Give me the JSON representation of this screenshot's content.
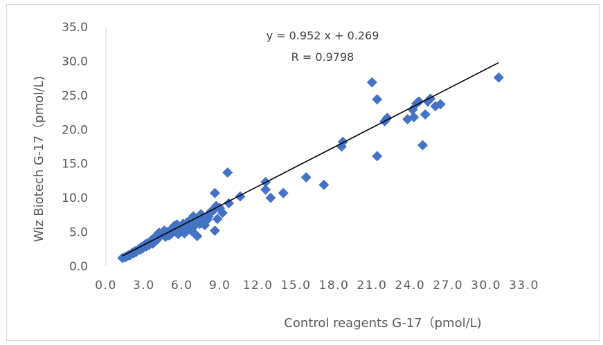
{
  "chart_data": {
    "type": "scatter",
    "title": "",
    "xlabel": "Control reagents  G-17（pmol/L)",
    "ylabel": "Wiz Biotech G-17（pmol/L)",
    "xlim": [
      0,
      33
    ],
    "ylim": [
      0,
      35
    ],
    "x_ticks": [
      "0.0",
      "3.0",
      "6.0",
      "9.0",
      "12.0",
      "15.0",
      "18.0",
      "21.0",
      "24.0",
      "27.0",
      "30.0",
      "33.0"
    ],
    "y_ticks": [
      "0.0",
      "5.0",
      "10.0",
      "15.0",
      "20.0",
      "25.0",
      "30.0",
      "35.0"
    ],
    "grid": false,
    "legend": "none",
    "marker_color": "#4472C4",
    "trendline": {
      "slope": 0.952,
      "intercept": 0.269,
      "x_range": [
        1.3,
        31.0
      ],
      "color": "#000000"
    },
    "annotations": [
      "y = 0.952 x + 0.269",
      "R = 0.9798"
    ],
    "points": [
      [
        1.3,
        1.2
      ],
      [
        1.5,
        1.3
      ],
      [
        1.6,
        1.4
      ],
      [
        1.7,
        1.5
      ],
      [
        1.8,
        1.6
      ],
      [
        1.9,
        1.6
      ],
      [
        2.0,
        1.8
      ],
      [
        2.1,
        2.0
      ],
      [
        2.2,
        1.9
      ],
      [
        2.3,
        2.2
      ],
      [
        2.4,
        2.1
      ],
      [
        2.5,
        2.3
      ],
      [
        2.6,
        2.5
      ],
      [
        2.7,
        2.4
      ],
      [
        2.8,
        2.8
      ],
      [
        2.9,
        2.6
      ],
      [
        3.0,
        3.0
      ],
      [
        3.1,
        3.2
      ],
      [
        3.2,
        2.9
      ],
      [
        3.3,
        3.4
      ],
      [
        3.4,
        3.1
      ],
      [
        3.5,
        3.6
      ],
      [
        3.6,
        3.8
      ],
      [
        3.7,
        3.3
      ],
      [
        3.8,
        4.0
      ],
      [
        3.9,
        4.3
      ],
      [
        4.0,
        3.8
      ],
      [
        4.1,
        4.2
      ],
      [
        4.2,
        4.9
      ],
      [
        4.3,
        4.4
      ],
      [
        4.5,
        4.7
      ],
      [
        4.6,
        5.2
      ],
      [
        4.7,
        4.3
      ],
      [
        4.8,
        5.0
      ],
      [
        4.9,
        4.6
      ],
      [
        5.0,
        4.5
      ],
      [
        5.1,
        5.3
      ],
      [
        5.2,
        4.8
      ],
      [
        5.3,
        5.5
      ],
      [
        5.4,
        5.9
      ],
      [
        5.5,
        5.1
      ],
      [
        5.6,
        6.1
      ],
      [
        5.7,
        4.7
      ],
      [
        5.8,
        5.6
      ],
      [
        5.9,
        5.2
      ],
      [
        6.0,
        5.8
      ],
      [
        6.1,
        6.2
      ],
      [
        6.2,
        4.8
      ],
      [
        6.3,
        5.4
      ],
      [
        6.4,
        6.4
      ],
      [
        6.5,
        5.7
      ],
      [
        6.6,
        6.0
      ],
      [
        6.7,
        6.8
      ],
      [
        6.8,
        5.1
      ],
      [
        6.9,
        7.3
      ],
      [
        7.0,
        5.9
      ],
      [
        7.1,
        6.5
      ],
      [
        7.2,
        4.4
      ],
      [
        7.3,
        7.0
      ],
      [
        7.4,
        6.2
      ],
      [
        7.5,
        7.6
      ],
      [
        7.6,
        6.3
      ],
      [
        7.7,
        7.1
      ],
      [
        7.8,
        6.0
      ],
      [
        8.0,
        6.8
      ],
      [
        8.1,
        7.3
      ],
      [
        8.3,
        8.0
      ],
      [
        8.5,
        8.2
      ],
      [
        8.6,
        10.7
      ],
      [
        8.6,
        5.2
      ],
      [
        8.7,
        8.8
      ],
      [
        8.8,
        6.9
      ],
      [
        9.0,
        8.5
      ],
      [
        9.2,
        7.8
      ],
      [
        9.6,
        13.7
      ],
      [
        9.7,
        9.2
      ],
      [
        10.6,
        10.2
      ],
      [
        12.6,
        12.3
      ],
      [
        12.6,
        11.2
      ],
      [
        13.0,
        10.0
      ],
      [
        14.0,
        10.7
      ],
      [
        15.8,
        13.0
      ],
      [
        17.2,
        11.9
      ],
      [
        18.6,
        17.5
      ],
      [
        18.7,
        18.2
      ],
      [
        21.0,
        26.9
      ],
      [
        21.4,
        24.4
      ],
      [
        21.4,
        16.1
      ],
      [
        22.0,
        21.2
      ],
      [
        22.2,
        21.7
      ],
      [
        23.8,
        21.5
      ],
      [
        24.2,
        22.9
      ],
      [
        24.3,
        21.8
      ],
      [
        24.5,
        23.8
      ],
      [
        24.7,
        24.1
      ],
      [
        25.0,
        17.7
      ],
      [
        25.2,
        22.2
      ],
      [
        25.4,
        24.1
      ],
      [
        25.6,
        24.5
      ],
      [
        26.0,
        23.4
      ],
      [
        26.4,
        23.7
      ],
      [
        31.0,
        27.6
      ]
    ]
  }
}
